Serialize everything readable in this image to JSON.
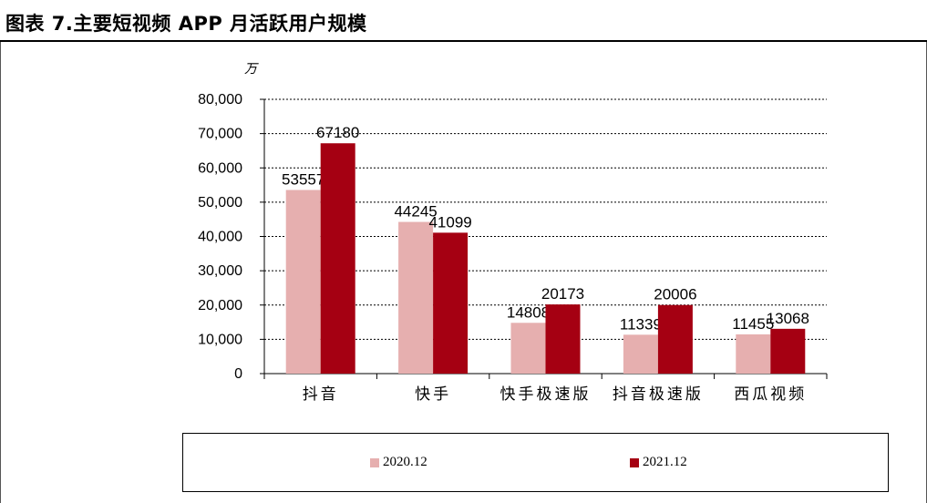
{
  "page_title": "图表 7.主要短视频 APP 月活跃用户规模",
  "chart_data": {
    "type": "bar",
    "title": "图表 7.主要短视频 APP 月活跃用户规模",
    "unit_label": "万",
    "categories": [
      "抖音",
      "快手",
      "快手极速版",
      "抖音极速版",
      "西瓜视频"
    ],
    "series": [
      {
        "name": "2020.12",
        "values": [
          53557,
          44245,
          14808,
          11339,
          11455
        ],
        "color": "#E6AFAF"
      },
      {
        "name": "2021.12",
        "values": [
          67180,
          41099,
          20173,
          20006,
          13068
        ],
        "color": "#A50012"
      }
    ],
    "ylim": [
      0,
      80000
    ],
    "yticks": [
      0,
      10000,
      20000,
      30000,
      40000,
      50000,
      60000,
      70000,
      80000
    ],
    "ytick_labels": [
      "0",
      "10,000",
      "20,000",
      "30,000",
      "40,000",
      "50,000",
      "60,000",
      "70,000",
      "80,000"
    ],
    "grid": true,
    "legend_position": "bottom"
  }
}
